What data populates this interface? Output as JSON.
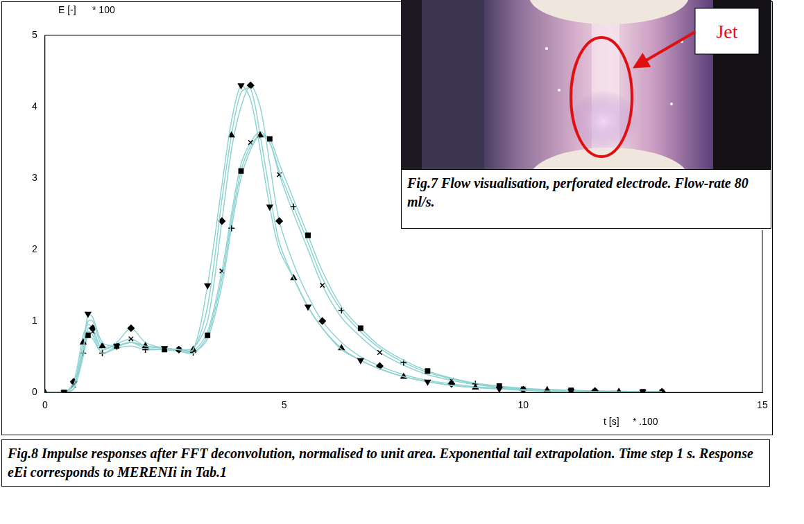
{
  "chart_data": {
    "type": "line",
    "y_label": "E [-]",
    "y_scale_note": "* 100",
    "x_label": "t [s]",
    "x_scale_note": "* .100",
    "x": [
      0,
      0.4,
      0.6,
      0.8,
      0.9,
      1.0,
      1.2,
      1.5,
      1.8,
      2.1,
      2.5,
      2.8,
      3.1,
      3.4,
      3.7,
      3.9,
      4.1,
      4.3,
      4.5,
      4.7,
      4.9,
      5.2,
      5.5,
      5.8,
      6.2,
      6.6,
      7.0,
      7.5,
      8.0,
      8.5,
      9.0,
      9.5,
      10.0,
      10.5,
      11.0,
      11.5,
      12.0,
      12.5,
      12.9
    ],
    "series": [
      {
        "color": "#8fd3d3",
        "marker": "triangle_down",
        "values": [
          0,
          0,
          0.05,
          0.6,
          1.1,
          1.05,
          0.7,
          0.65,
          0.7,
          0.65,
          0.62,
          0.6,
          0.6,
          1.5,
          2.9,
          3.8,
          4.3,
          4.1,
          3.4,
          2.6,
          2.0,
          1.6,
          1.2,
          0.9,
          0.6,
          0.45,
          0.33,
          0.22,
          0.15,
          0.1,
          0.07,
          0.05,
          0.03,
          0.02,
          0.02,
          0.01,
          0.01,
          0.01,
          0.01
        ]
      },
      {
        "color": "#8fd3d3",
        "marker": "triangle",
        "values": [
          0,
          0,
          0.1,
          0.7,
          1.0,
          1.0,
          0.65,
          0.65,
          0.7,
          0.65,
          0.62,
          0.6,
          0.6,
          1.2,
          2.7,
          3.6,
          4.2,
          4.25,
          3.6,
          2.8,
          2.1,
          1.6,
          1.2,
          0.9,
          0.62,
          0.45,
          0.33,
          0.22,
          0.15,
          0.1,
          0.07,
          0.05,
          0.04,
          0.03,
          0.02,
          0.01,
          0.01,
          0.01,
          0.01
        ]
      },
      {
        "color": "#8fd3d3",
        "marker": "diamond",
        "values": [
          0,
          0,
          0.15,
          0.8,
          0.95,
          0.9,
          0.6,
          0.7,
          0.9,
          0.7,
          0.62,
          0.6,
          0.62,
          1.0,
          2.4,
          3.4,
          4.0,
          4.3,
          4.0,
          3.2,
          2.4,
          1.8,
          1.35,
          1.0,
          0.7,
          0.5,
          0.37,
          0.25,
          0.17,
          0.12,
          0.08,
          0.06,
          0.04,
          0.03,
          0.02,
          0.02,
          0.01,
          0.01,
          0.01
        ]
      },
      {
        "color": "#8fd3d3",
        "marker": "square",
        "values": [
          0,
          0,
          0.05,
          0.5,
          0.8,
          0.75,
          0.55,
          0.65,
          0.7,
          0.62,
          0.6,
          0.58,
          0.55,
          0.8,
          1.6,
          2.4,
          3.1,
          3.45,
          3.6,
          3.55,
          3.2,
          2.7,
          2.2,
          1.7,
          1.2,
          0.9,
          0.65,
          0.45,
          0.3,
          0.2,
          0.13,
          0.09,
          0.06,
          0.04,
          0.03,
          0.02,
          0.02,
          0.01,
          0.01
        ]
      },
      {
        "color": "#8fd3d3",
        "marker": "plus",
        "values": [
          0,
          0,
          0.05,
          0.55,
          0.85,
          0.8,
          0.55,
          0.62,
          0.65,
          0.6,
          0.6,
          0.58,
          0.56,
          0.75,
          1.5,
          2.3,
          3.0,
          3.4,
          3.6,
          3.5,
          3.1,
          2.6,
          2.1,
          1.6,
          1.15,
          0.85,
          0.62,
          0.42,
          0.28,
          0.19,
          0.12,
          0.08,
          0.05,
          0.04,
          0.03,
          0.02,
          0.01,
          0.01,
          0.01
        ]
      },
      {
        "color": "#8fd3d3",
        "marker": "cross",
        "values": [
          0,
          0,
          0.1,
          0.6,
          0.9,
          0.85,
          0.6,
          0.68,
          0.75,
          0.65,
          0.62,
          0.6,
          0.58,
          0.85,
          1.7,
          2.5,
          3.2,
          3.5,
          3.65,
          3.5,
          3.05,
          2.5,
          2.0,
          1.5,
          1.05,
          0.78,
          0.56,
          0.38,
          0.25,
          0.17,
          0.11,
          0.07,
          0.05,
          0.03,
          0.02,
          0.02,
          0.01,
          0.01,
          0.01
        ]
      }
    ],
    "xlim": [
      0,
      15
    ],
    "xticks": [
      0,
      5,
      10,
      15
    ],
    "ylim": [
      0,
      5
    ],
    "yticks": [
      0,
      1,
      2,
      3,
      4,
      5
    ],
    "grid": false,
    "caption": "Fig.8 Impulse responses after FFT deconvolution, normalised to unit area. Exponential tail extrapolation. Time step 1 s. Response eEi corresponds to MERENIi in Tab.1"
  },
  "inset": {
    "annotation": "Jet",
    "caption": "Fig.7 Flow visualisation, perforated electrode. Flow-rate 80 ml/s."
  }
}
